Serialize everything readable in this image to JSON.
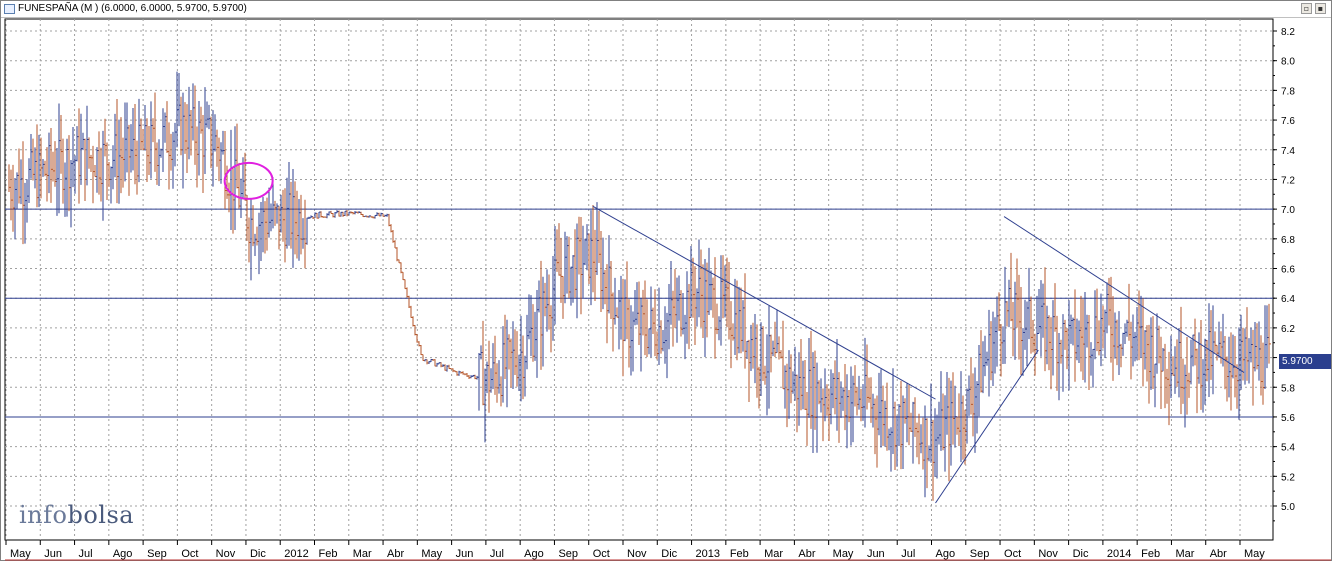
{
  "window": {
    "title": "FUNESPAÑA (M ) (6.0000, 6.0000, 5.9700, 5.9700)",
    "restore_label": "▫",
    "close_label": "▪"
  },
  "logo": {
    "part1": "info",
    "part2": "bolsa"
  },
  "price_badge": "5.9700",
  "colors": {
    "up": "#2e3f8f",
    "down": "#b5562a",
    "trend": "#2e3f8f",
    "circle": "#e020e0",
    "grid": "#a0a0a0"
  },
  "chart_data": {
    "type": "bar",
    "title": "FUNESPAÑA (M ) (6.0000, 6.0000, 5.9700, 5.9700)",
    "xlabel": "",
    "ylabel": "",
    "ylim": [
      4.8,
      8.3
    ],
    "y_ticks": [
      "5.0",
      "5.2",
      "5.4",
      "5.6",
      "5.8",
      "6.0",
      "6.2",
      "6.4",
      "6.6",
      "6.8",
      "7.0",
      "7.2",
      "7.4",
      "7.6",
      "7.8",
      "8.0",
      "8.2"
    ],
    "x_labels": [
      "May",
      "Jun",
      "Jul",
      "Ago",
      "Sep",
      "Oct",
      "Nov",
      "Dic",
      "2012",
      "Feb",
      "Mar",
      "Abr",
      "May",
      "Jun",
      "Jul",
      "Ago",
      "Sep",
      "Oct",
      "Nov",
      "Dic",
      "2013",
      "Feb",
      "Mar",
      "Abr",
      "May",
      "Jun",
      "Jul",
      "Ago",
      "Sep",
      "Oct",
      "Nov",
      "Dic",
      "2014",
      "Feb",
      "Mar",
      "Abr",
      "May"
    ],
    "x_range": [
      "May 2011",
      "May 2014"
    ],
    "last_close": 5.97,
    "grid": true,
    "horizontal_levels": [
      7.0,
      6.4,
      5.6
    ],
    "series_path": [
      [
        "May 2011",
        7.15
      ],
      [
        "Jun 2011",
        7.25
      ],
      [
        "Jul 2011",
        7.35
      ],
      [
        "Ago 2011",
        7.35
      ],
      [
        "Sep 2011",
        7.4
      ],
      [
        "Oct 2011",
        7.55
      ],
      [
        "Nov 2011",
        7.45
      ],
      [
        "Dic 2011",
        6.92
      ],
      [
        "2012",
        6.93
      ],
      [
        "Feb 2012",
        6.96
      ],
      [
        "Mar 2012",
        6.97
      ],
      [
        "Abr 2012",
        6.95
      ],
      [
        "May 2012",
        6.0
      ],
      [
        "Jun 2012",
        5.9
      ],
      [
        "Jul 2012",
        5.85
      ],
      [
        "Ago 2012",
        6.05
      ],
      [
        "Sep 2012",
        6.55
      ],
      [
        "Oct 2012",
        6.7
      ],
      [
        "Nov 2012",
        6.2
      ],
      [
        "Dic 2012",
        6.2
      ],
      [
        "2013",
        6.45
      ],
      [
        "Feb 2013",
        6.3
      ],
      [
        "Mar 2013",
        6.0
      ],
      [
        "Abr 2013",
        5.8
      ],
      [
        "May 2013",
        5.75
      ],
      [
        "Jun 2013",
        5.7
      ],
      [
        "Jul 2013",
        5.55
      ],
      [
        "Ago 2013",
        5.45
      ],
      [
        "Sep 2013",
        5.7
      ],
      [
        "Oct 2013",
        6.3
      ],
      [
        "Nov 2013",
        6.2
      ],
      [
        "Dic 2013",
        6.1
      ],
      [
        "2014",
        6.25
      ],
      [
        "Feb 2014",
        6.1
      ],
      [
        "Mar 2014",
        5.95
      ],
      [
        "Abr 2014",
        6.0
      ],
      [
        "May 2014",
        5.97
      ]
    ],
    "trendlines": [
      [
        [
          "Oct 2012",
          7.02
        ],
        [
          "Ago 2013",
          5.72
        ]
      ],
      [
        "Ago 2013",
        5.02,
        "Nov 2013",
        6.05
      ],
      [
        [
          "Oct 2013",
          6.95
        ],
        [
          "May 2014",
          5.9
        ]
      ]
    ]
  }
}
